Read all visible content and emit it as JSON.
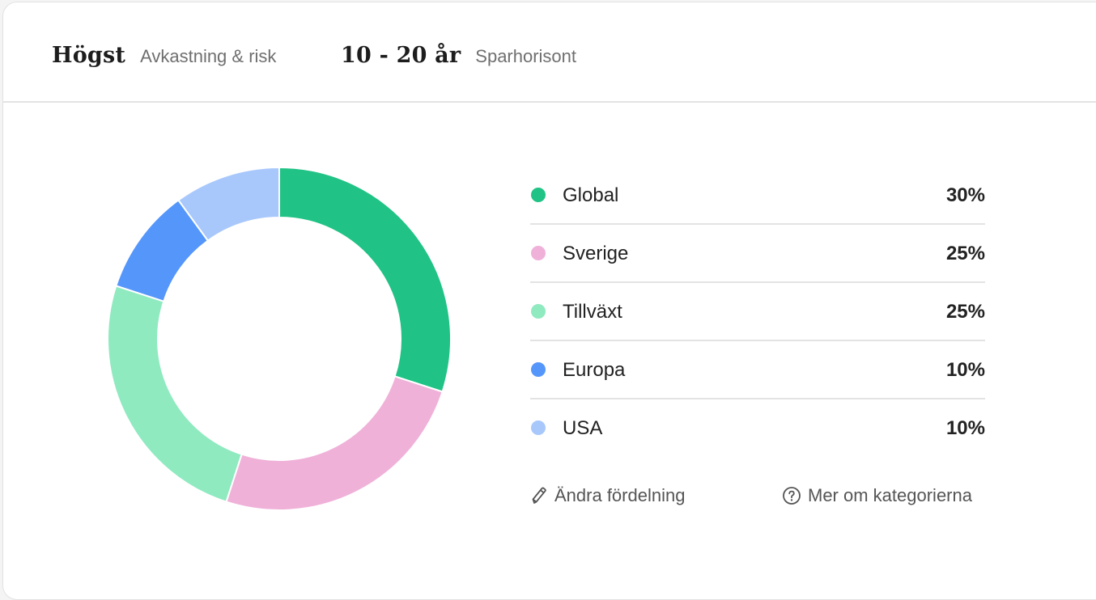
{
  "header": {
    "risk_value": "Högst",
    "risk_label": "Avkastning & risk",
    "horizon_value": "10 - 20 år",
    "horizon_label": "Sparhorisont"
  },
  "allocation": [
    {
      "name": "Global",
      "percent": 30,
      "percent_text": "30%",
      "color": "#20c385"
    },
    {
      "name": "Sverige",
      "percent": 25,
      "percent_text": "25%",
      "color": "#f0b1d9"
    },
    {
      "name": "Tillväxt",
      "percent": 25,
      "percent_text": "25%",
      "color": "#8feac0"
    },
    {
      "name": "Europa",
      "percent": 10,
      "percent_text": "10%",
      "color": "#5596fb"
    },
    {
      "name": "USA",
      "percent": 10,
      "percent_text": "10%",
      "color": "#a8c8fc"
    }
  ],
  "actions": {
    "edit_label": "Ändra fördelning",
    "edit_icon": "pencil-icon",
    "more_label": "Mer om kategorierna",
    "more_icon": "question-circle-icon"
  },
  "chart_data": {
    "type": "pie",
    "donut": true,
    "categories": [
      "Global",
      "Sverige",
      "Tillväxt",
      "Europa",
      "USA"
    ],
    "values": [
      30,
      25,
      25,
      10,
      10
    ],
    "colors": [
      "#20c385",
      "#f0b1d9",
      "#8feac0",
      "#5596fb",
      "#a8c8fc"
    ],
    "start": "top",
    "direction": "clockwise"
  }
}
